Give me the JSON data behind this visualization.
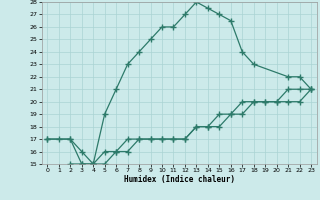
{
  "xlabel": "Humidex (Indice chaleur)",
  "xlim": [
    -0.5,
    23.5
  ],
  "ylim": [
    15,
    28
  ],
  "xticks": [
    0,
    1,
    2,
    3,
    4,
    5,
    6,
    7,
    8,
    9,
    10,
    11,
    12,
    13,
    14,
    15,
    16,
    17,
    18,
    19,
    20,
    21,
    22,
    23
  ],
  "yticks": [
    15,
    16,
    17,
    18,
    19,
    20,
    21,
    22,
    23,
    24,
    25,
    26,
    27,
    28
  ],
  "bg_color": "#cceaea",
  "line_color": "#2d7a6a",
  "grid_color": "#aad4d4",
  "line1_x": [
    0,
    1,
    2,
    3,
    4,
    5,
    6,
    7,
    8,
    9,
    10,
    11,
    12,
    13,
    14,
    15,
    16,
    17,
    18,
    21,
    22,
    23
  ],
  "line1_y": [
    17,
    17,
    17,
    15,
    15,
    19,
    21,
    23,
    24,
    25,
    26,
    26,
    27,
    28,
    27.5,
    27,
    26.5,
    24,
    23,
    22,
    22,
    21
  ],
  "line2_x": [
    0,
    2,
    3,
    4,
    5,
    6,
    7,
    8,
    9,
    10,
    11,
    12,
    13,
    14,
    15,
    16,
    17,
    18,
    19,
    20,
    21,
    22,
    23
  ],
  "line2_y": [
    17,
    17,
    16,
    15,
    15,
    16,
    17,
    17,
    17,
    17,
    17,
    17,
    18,
    18,
    18,
    19,
    20,
    20,
    20,
    20,
    21,
    21,
    21
  ],
  "line3_x": [
    2,
    3,
    4,
    5,
    6,
    7,
    8,
    9,
    10,
    11,
    12,
    13,
    14,
    15,
    16,
    17,
    18,
    19,
    20,
    21,
    22,
    23
  ],
  "line3_y": [
    15,
    15,
    15,
    16,
    16,
    16,
    17,
    17,
    17,
    17,
    17,
    18,
    18,
    19,
    19,
    19,
    20,
    20,
    20,
    20,
    20,
    21
  ]
}
